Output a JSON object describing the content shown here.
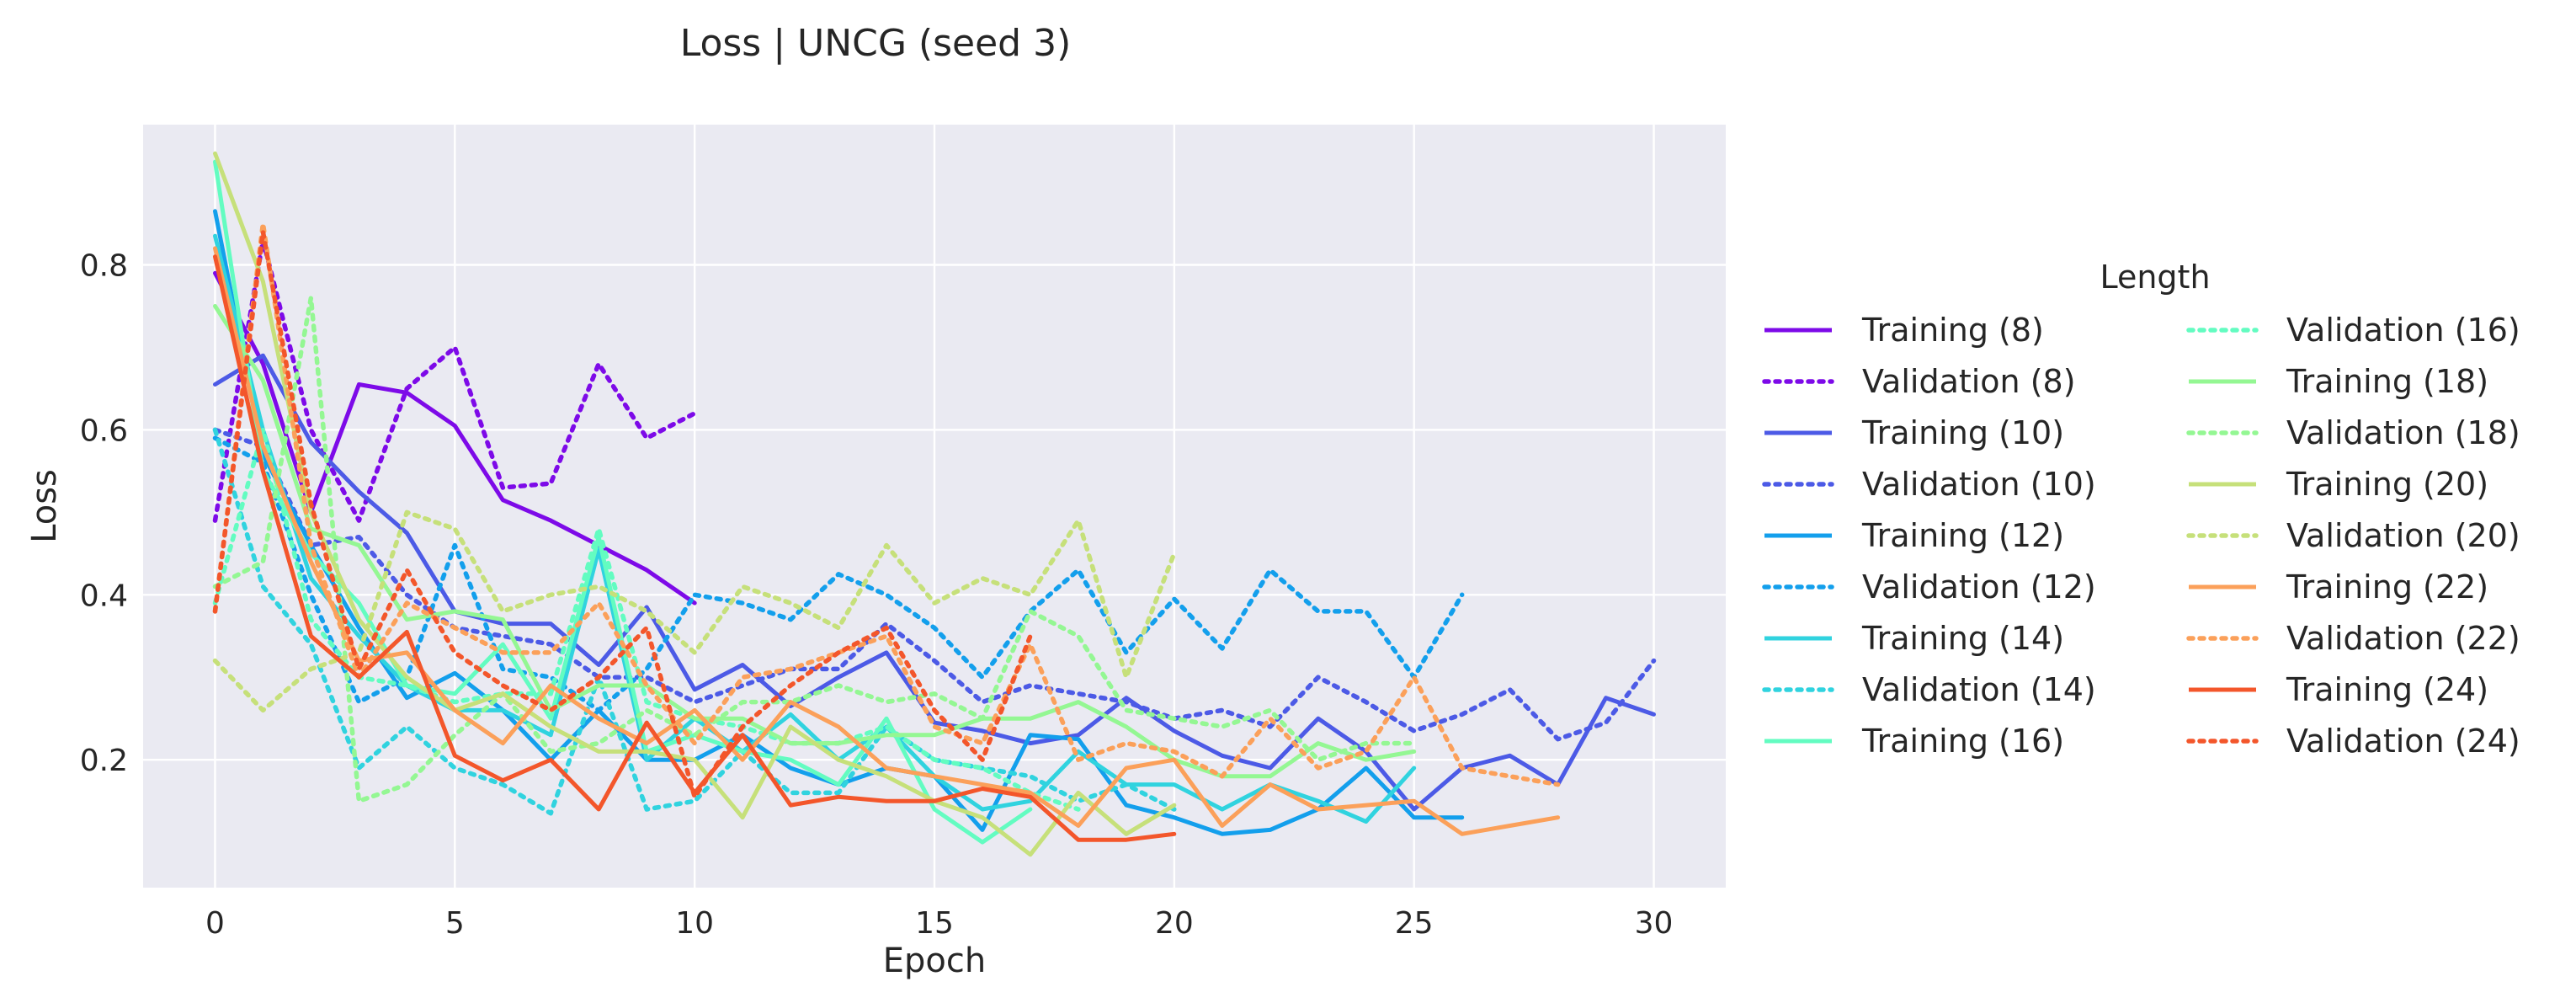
{
  "chart_data": {
    "type": "line",
    "title": "Loss | UNCG (seed 3)",
    "xlabel": "Epoch",
    "ylabel": "Loss",
    "xlim": [
      -1.5,
      31.5
    ],
    "ylim": [
      0.045,
      0.97
    ],
    "xticks": [
      0,
      5,
      10,
      15,
      20,
      25,
      30
    ],
    "yticks": [
      0.2,
      0.4,
      0.6,
      0.8
    ],
    "xtick_labels": [
      "0",
      "5",
      "10",
      "15",
      "20",
      "25",
      "30"
    ],
    "ytick_labels": [
      "0.2",
      "0.4",
      "0.6",
      "0.8"
    ],
    "grid": true,
    "background": "#eaeaf2",
    "legend": {
      "title": "Length",
      "placement": "right, outside plot",
      "columns": 2
    },
    "series": [
      {
        "name": "Training (8)",
        "style": "solid",
        "color": "#7d0ae8",
        "x": [
          0,
          1,
          2,
          3,
          4,
          5,
          6,
          7,
          8,
          9,
          10
        ],
        "y": [
          0.79,
          0.68,
          0.5,
          0.655,
          0.645,
          0.605,
          0.515,
          0.49,
          0.46,
          0.43,
          0.39
        ]
      },
      {
        "name": "Validation (8)",
        "style": "dotted",
        "color": "#7d0ae8",
        "x": [
          0,
          1,
          2,
          3,
          4,
          5,
          6,
          7,
          8,
          9,
          10
        ],
        "y": [
          0.49,
          0.83,
          0.6,
          0.49,
          0.65,
          0.7,
          0.53,
          0.535,
          0.68,
          0.59,
          0.62
        ]
      },
      {
        "name": "Training (10)",
        "style": "solid",
        "color": "#4c5ae6",
        "x": [
          0,
          1,
          2,
          3,
          4,
          5,
          6,
          7,
          8,
          9,
          10,
          11,
          12,
          13,
          14,
          15,
          16,
          17,
          18,
          19,
          20,
          21,
          22,
          23,
          24,
          25,
          26,
          27,
          28,
          29,
          30
        ],
        "y": [
          0.655,
          0.69,
          0.585,
          0.525,
          0.475,
          0.38,
          0.365,
          0.365,
          0.315,
          0.385,
          0.285,
          0.315,
          0.265,
          0.3,
          0.33,
          0.245,
          0.235,
          0.22,
          0.23,
          0.275,
          0.235,
          0.205,
          0.19,
          0.25,
          0.21,
          0.14,
          0.19,
          0.205,
          0.17,
          0.275,
          0.255
        ]
      },
      {
        "name": "Validation (10)",
        "style": "dotted",
        "color": "#4c5ae6",
        "x": [
          0,
          1,
          2,
          3,
          4,
          5,
          6,
          7,
          8,
          9,
          10,
          11,
          12,
          13,
          14,
          15,
          16,
          17,
          18,
          19,
          20,
          21,
          22,
          23,
          24,
          25,
          26,
          27,
          28,
          29,
          30
        ],
        "y": [
          0.6,
          0.58,
          0.46,
          0.47,
          0.4,
          0.36,
          0.35,
          0.34,
          0.3,
          0.3,
          0.27,
          0.29,
          0.31,
          0.31,
          0.365,
          0.32,
          0.27,
          0.29,
          0.28,
          0.27,
          0.25,
          0.26,
          0.24,
          0.3,
          0.27,
          0.235,
          0.255,
          0.285,
          0.225,
          0.245,
          0.32
        ]
      },
      {
        "name": "Training (12)",
        "style": "solid",
        "color": "#139fec",
        "x": [
          0,
          1,
          2,
          3,
          4,
          5,
          6,
          7,
          8,
          9,
          10,
          11,
          12,
          13,
          14,
          15,
          16,
          17,
          18,
          19,
          20,
          21,
          22,
          23,
          24,
          25,
          26
        ],
        "y": [
          0.865,
          0.57,
          0.46,
          0.36,
          0.275,
          0.305,
          0.26,
          0.2,
          0.26,
          0.2,
          0.2,
          0.23,
          0.19,
          0.17,
          0.19,
          0.18,
          0.115,
          0.23,
          0.225,
          0.145,
          0.13,
          0.11,
          0.115,
          0.14,
          0.19,
          0.13,
          0.13
        ]
      },
      {
        "name": "Validation (12)",
        "style": "dotted",
        "color": "#139fec",
        "x": [
          0,
          1,
          2,
          3,
          4,
          5,
          6,
          7,
          8,
          9,
          10,
          11,
          12,
          13,
          14,
          15,
          16,
          17,
          18,
          19,
          20,
          21,
          22,
          23,
          24,
          25,
          26
        ],
        "y": [
          0.59,
          0.56,
          0.4,
          0.27,
          0.3,
          0.46,
          0.31,
          0.3,
          0.26,
          0.31,
          0.4,
          0.39,
          0.37,
          0.425,
          0.4,
          0.36,
          0.3,
          0.38,
          0.43,
          0.33,
          0.395,
          0.335,
          0.43,
          0.38,
          0.38,
          0.3,
          0.4
        ]
      },
      {
        "name": "Training (14)",
        "style": "solid",
        "color": "#30d3df",
        "x": [
          0,
          1,
          2,
          3,
          4,
          5,
          6,
          7,
          8,
          9,
          10,
          11,
          12,
          13,
          14,
          15,
          16,
          17,
          18,
          19,
          20,
          21,
          22,
          23,
          24,
          25
        ],
        "y": [
          0.835,
          0.6,
          0.42,
          0.35,
          0.29,
          0.26,
          0.26,
          0.23,
          0.455,
          0.2,
          0.25,
          0.21,
          0.255,
          0.2,
          0.24,
          0.18,
          0.14,
          0.15,
          0.21,
          0.17,
          0.17,
          0.14,
          0.17,
          0.15,
          0.125,
          0.19
        ]
      },
      {
        "name": "Validation (14)",
        "style": "dotted",
        "color": "#30d3df",
        "x": [
          0,
          1,
          2,
          3,
          4,
          5,
          6,
          7,
          8,
          9,
          10,
          11,
          12,
          13,
          14,
          15,
          16,
          17,
          18,
          19,
          20
        ],
        "y": [
          0.6,
          0.41,
          0.34,
          0.19,
          0.24,
          0.19,
          0.17,
          0.135,
          0.3,
          0.14,
          0.15,
          0.21,
          0.16,
          0.16,
          0.24,
          0.2,
          0.19,
          0.18,
          0.15,
          0.17,
          0.14
        ]
      },
      {
        "name": "Training (16)",
        "style": "solid",
        "color": "#63fcc1",
        "x": [
          0,
          1,
          2,
          3,
          4,
          5,
          6,
          7,
          8,
          9,
          10,
          11,
          12,
          13,
          14,
          15,
          16,
          17
        ],
        "y": [
          0.925,
          0.55,
          0.45,
          0.39,
          0.29,
          0.28,
          0.34,
          0.25,
          0.47,
          0.21,
          0.23,
          0.21,
          0.2,
          0.17,
          0.25,
          0.14,
          0.1,
          0.14
        ]
      },
      {
        "name": "Validation (16)",
        "style": "dotted",
        "color": "#63fcc1",
        "x": [
          0,
          1,
          2,
          3,
          4,
          5,
          6,
          7,
          8,
          9,
          10,
          11,
          12,
          13,
          14,
          15,
          16,
          17,
          18
        ],
        "y": [
          0.39,
          0.6,
          0.37,
          0.3,
          0.29,
          0.27,
          0.28,
          0.28,
          0.48,
          0.27,
          0.25,
          0.24,
          0.22,
          0.22,
          0.24,
          0.2,
          0.19,
          0.16,
          0.14
        ]
      },
      {
        "name": "Training (18)",
        "style": "solid",
        "color": "#94f793",
        "x": [
          0,
          1,
          2,
          3,
          4,
          5,
          6,
          7,
          8,
          9,
          10,
          11,
          12,
          13,
          14,
          15,
          16,
          17,
          18,
          19,
          20,
          21,
          22,
          23,
          24,
          25
        ],
        "y": [
          0.75,
          0.66,
          0.48,
          0.46,
          0.37,
          0.38,
          0.37,
          0.26,
          0.29,
          0.29,
          0.25,
          0.25,
          0.22,
          0.22,
          0.23,
          0.23,
          0.25,
          0.25,
          0.27,
          0.24,
          0.2,
          0.18,
          0.18,
          0.22,
          0.2,
          0.21
        ]
      },
      {
        "name": "Validation (18)",
        "style": "dotted",
        "color": "#94f793",
        "x": [
          0,
          1,
          2,
          3,
          4,
          5,
          6,
          7,
          8,
          9,
          10,
          11,
          12,
          13,
          14,
          15,
          16,
          17,
          18,
          19,
          20,
          21,
          22,
          23,
          24,
          25
        ],
        "y": [
          0.41,
          0.44,
          0.76,
          0.15,
          0.17,
          0.23,
          0.28,
          0.21,
          0.22,
          0.26,
          0.23,
          0.27,
          0.27,
          0.29,
          0.27,
          0.28,
          0.25,
          0.38,
          0.35,
          0.26,
          0.25,
          0.24,
          0.26,
          0.2,
          0.22,
          0.22
        ]
      },
      {
        "name": "Training (20)",
        "style": "solid",
        "color": "#c6e07a",
        "x": [
          0,
          1,
          2,
          3,
          4,
          5,
          6,
          7,
          8,
          9,
          10,
          11,
          12,
          13,
          14,
          15,
          16,
          17,
          18,
          19,
          20
        ],
        "y": [
          0.935,
          0.78,
          0.5,
          0.37,
          0.3,
          0.26,
          0.28,
          0.24,
          0.21,
          0.21,
          0.2,
          0.13,
          0.24,
          0.2,
          0.18,
          0.15,
          0.13,
          0.085,
          0.16,
          0.11,
          0.145
        ]
      },
      {
        "name": "Validation (20)",
        "style": "dotted",
        "color": "#c6e07a",
        "x": [
          0,
          1,
          2,
          3,
          4,
          5,
          6,
          7,
          8,
          9,
          10,
          11,
          12,
          13,
          14,
          15,
          16,
          17,
          18,
          19,
          20
        ],
        "y": [
          0.32,
          0.26,
          0.31,
          0.33,
          0.5,
          0.48,
          0.38,
          0.4,
          0.41,
          0.38,
          0.33,
          0.41,
          0.39,
          0.36,
          0.46,
          0.39,
          0.42,
          0.4,
          0.49,
          0.3,
          0.45
        ]
      },
      {
        "name": "Training (22)",
        "style": "solid",
        "color": "#fba05a",
        "x": [
          0,
          1,
          2,
          3,
          4,
          5,
          6,
          7,
          8,
          9,
          10,
          11,
          12,
          13,
          14,
          15,
          16,
          17,
          18,
          19,
          20,
          21,
          22,
          23,
          24,
          25,
          26,
          27,
          28
        ],
        "y": [
          0.82,
          0.58,
          0.44,
          0.32,
          0.33,
          0.26,
          0.22,
          0.29,
          0.25,
          0.22,
          0.26,
          0.2,
          0.27,
          0.24,
          0.19,
          0.18,
          0.17,
          0.16,
          0.12,
          0.19,
          0.2,
          0.12,
          0.17,
          0.14,
          0.145,
          0.15,
          0.11,
          0.12,
          0.13
        ]
      },
      {
        "name": "Validation (22)",
        "style": "dotted",
        "color": "#fba05a",
        "x": [
          0,
          1,
          2,
          3,
          4,
          5,
          6,
          7,
          8,
          9,
          10,
          11,
          12,
          13,
          14,
          15,
          16,
          17,
          18,
          19,
          20,
          21,
          22,
          23,
          24,
          25,
          26,
          27,
          28
        ],
        "y": [
          0.38,
          0.85,
          0.46,
          0.3,
          0.39,
          0.36,
          0.33,
          0.33,
          0.39,
          0.29,
          0.22,
          0.3,
          0.31,
          0.33,
          0.35,
          0.24,
          0.22,
          0.34,
          0.2,
          0.22,
          0.21,
          0.18,
          0.25,
          0.19,
          0.21,
          0.3,
          0.19,
          0.18,
          0.17
        ]
      },
      {
        "name": "Training (24)",
        "style": "solid",
        "color": "#f3562b",
        "x": [
          0,
          1,
          2,
          3,
          4,
          5,
          6,
          7,
          8,
          9,
          10,
          11,
          12,
          13,
          14,
          15,
          16,
          17,
          18,
          19,
          20
        ],
        "y": [
          0.81,
          0.55,
          0.35,
          0.3,
          0.355,
          0.205,
          0.175,
          0.2,
          0.14,
          0.245,
          0.16,
          0.23,
          0.145,
          0.155,
          0.15,
          0.15,
          0.165,
          0.155,
          0.103,
          0.103,
          0.11
        ]
      },
      {
        "name": "Validation (24)",
        "style": "dotted",
        "color": "#f3562b",
        "x": [
          0,
          1,
          2,
          3,
          4,
          5,
          6,
          7,
          8,
          9,
          10,
          11,
          12,
          13,
          14,
          15,
          16,
          17
        ],
        "y": [
          0.38,
          0.84,
          0.51,
          0.31,
          0.43,
          0.33,
          0.29,
          0.26,
          0.3,
          0.36,
          0.155,
          0.24,
          0.29,
          0.33,
          0.36,
          0.26,
          0.2,
          0.35
        ]
      }
    ]
  }
}
